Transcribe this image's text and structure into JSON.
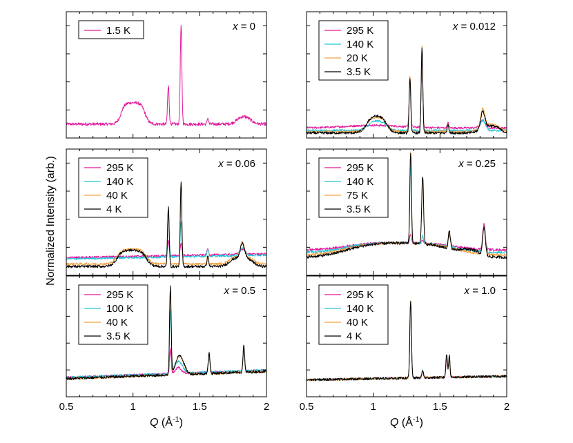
{
  "colors": {
    "magenta": "#e0189a",
    "cyan": "#22c3d8",
    "orange": "#f0a040",
    "black": "#000000"
  },
  "figure": {
    "ylabel": "Normalized Intensity (arb.)",
    "xlabel_symbol": "Q",
    "xlabel_unit": " (Å",
    "xlabel_exp": "-1",
    "xlabel_close": ")",
    "xtick_labels": [
      "0.5",
      "1",
      "1.5",
      "2"
    ]
  },
  "chart_data": [
    {
      "type": "line",
      "panel": "x = 0",
      "label_var": "x",
      "label_value": "= 0",
      "xlim": [
        0.5,
        2.0
      ],
      "ylim": [
        0,
        1
      ],
      "x": [
        0.5,
        2.0,
        0.5,
        1.0,
        1.5,
        2.0
      ],
      "series": [
        {
          "name": "1.5 K",
          "color": "#e0189a"
        }
      ],
      "peaks_description": "broad humps 0.92-1.08 and 1.79-1.87; sharp peaks at 1.27 and 1.36 (strongest), small 1.56"
    },
    {
      "type": "line",
      "panel": "x = 0.012",
      "label_var": "x",
      "label_value": "= 0.012",
      "xlim": [
        0.5,
        2.0
      ],
      "ylim": [
        0,
        1
      ],
      "series": [
        {
          "name": "295 K",
          "color": "#e0189a"
        },
        {
          "name": "140 K",
          "color": "#22c3d8"
        },
        {
          "name": "20 K",
          "color": "#f0a040"
        },
        {
          "name": "3.5 K",
          "color": "#000000"
        }
      ]
    },
    {
      "type": "line",
      "panel": "x = 0.06",
      "label_var": "x",
      "label_value": "= 0.06",
      "xlim": [
        0.5,
        2.0
      ],
      "ylim": [
        0,
        1
      ],
      "series": [
        {
          "name": "295 K",
          "color": "#e0189a"
        },
        {
          "name": "140 K",
          "color": "#22c3d8"
        },
        {
          "name": "40 K",
          "color": "#f0a040"
        },
        {
          "name": "4 K",
          "color": "#000000"
        }
      ]
    },
    {
      "type": "line",
      "panel": "x = 0.25",
      "label_var": "x",
      "label_value": "= 0.25",
      "xlim": [
        0.5,
        2.0
      ],
      "ylim": [
        0,
        1
      ],
      "series": [
        {
          "name": "295 K",
          "color": "#e0189a"
        },
        {
          "name": "140 K",
          "color": "#22c3d8"
        },
        {
          "name": "75 K",
          "color": "#f0a040"
        },
        {
          "name": "3.5 K",
          "color": "#000000"
        }
      ]
    },
    {
      "type": "line",
      "panel": "x = 0.5",
      "label_var": "x",
      "label_value": "= 0.5",
      "xlim": [
        0.5,
        2.0
      ],
      "ylim": [
        0,
        1
      ],
      "series": [
        {
          "name": "295 K",
          "color": "#e0189a"
        },
        {
          "name": "100 K",
          "color": "#22c3d8"
        },
        {
          "name": "40 K",
          "color": "#f0a040"
        },
        {
          "name": "3.5 K",
          "color": "#000000"
        }
      ]
    },
    {
      "type": "line",
      "panel": "x = 1.0",
      "label_var": "x",
      "label_value": "= 1.0",
      "xlim": [
        0.5,
        2.0
      ],
      "ylim": [
        0,
        1
      ],
      "series": [
        {
          "name": "295 K",
          "color": "#e0189a"
        },
        {
          "name": "140 K",
          "color": "#22c3d8"
        },
        {
          "name": "40 K",
          "color": "#f0a040"
        },
        {
          "name": "4 K",
          "color": "#000000"
        }
      ]
    }
  ]
}
